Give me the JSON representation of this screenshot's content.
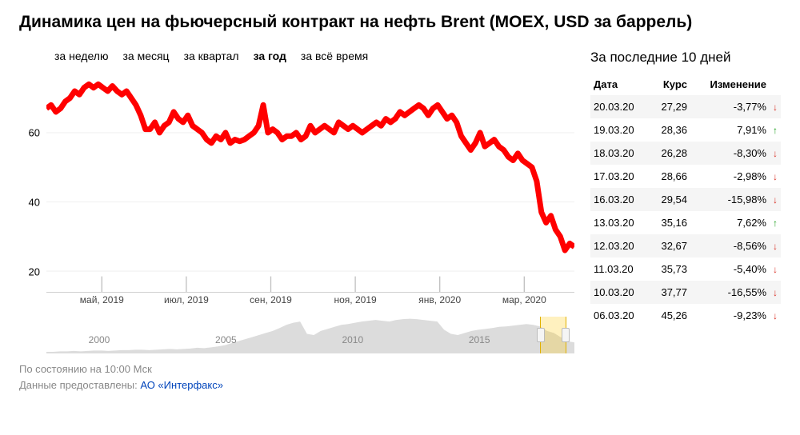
{
  "title": "Динамика цен на фьючерсный контракт на нефть Brent (MOEX, USD за баррель)",
  "tabs": [
    {
      "label": "за неделю",
      "active": false
    },
    {
      "label": "за месяц",
      "active": false
    },
    {
      "label": "за квартал",
      "active": false
    },
    {
      "label": "за год",
      "active": true
    },
    {
      "label": "за всё время",
      "active": false
    }
  ],
  "chart": {
    "type": "line",
    "line_color": "#ff0000",
    "line_width": 2,
    "background_color": "#ffffff",
    "grid_color": "#eeeeee",
    "ylim": [
      14,
      78
    ],
    "yticks": [
      20,
      40,
      60
    ],
    "xticks": [
      {
        "pos": 0.105,
        "label": "май, 2019"
      },
      {
        "pos": 0.265,
        "label": "июл, 2019"
      },
      {
        "pos": 0.425,
        "label": "сен, 2019"
      },
      {
        "pos": 0.585,
        "label": "ноя, 2019"
      },
      {
        "pos": 0.745,
        "label": "янв, 2020"
      },
      {
        "pos": 0.905,
        "label": "мар, 2020"
      }
    ],
    "series": [
      67,
      68,
      66,
      67,
      69,
      70,
      72,
      71,
      73,
      74,
      73,
      74,
      73,
      72,
      73.5,
      72,
      71,
      72,
      70,
      68,
      65,
      61,
      61,
      63,
      60,
      62,
      63,
      66,
      64,
      63,
      65,
      62,
      61,
      60,
      58,
      57,
      59,
      58,
      60,
      57,
      58,
      57.5,
      58,
      59,
      60,
      62,
      68,
      60,
      61,
      60,
      58,
      59,
      59,
      60,
      58,
      59,
      62,
      60,
      61,
      62,
      61,
      60,
      63,
      62,
      61,
      62,
      61,
      60,
      61,
      62,
      63,
      62,
      64,
      63,
      64,
      66,
      65,
      66,
      67,
      68,
      67,
      65,
      67,
      68,
      66,
      64,
      65,
      63,
      59,
      57,
      55,
      57,
      60,
      56,
      57,
      58,
      56,
      55,
      53,
      52,
      54,
      52,
      51,
      50,
      46,
      37,
      34,
      36,
      32,
      30,
      26,
      28,
      27
    ]
  },
  "overview": {
    "fill_color": "#dcdcdc",
    "window": {
      "start": 0.935,
      "end": 0.985
    },
    "ticks": [
      {
        "pos": 0.1,
        "label": "2000"
      },
      {
        "pos": 0.34,
        "label": "2005"
      },
      {
        "pos": 0.58,
        "label": "2010"
      },
      {
        "pos": 0.82,
        "label": "2015"
      }
    ],
    "series": [
      4,
      4,
      5,
      5,
      6,
      5,
      6,
      7,
      7,
      6,
      7,
      8,
      8,
      9,
      9,
      8,
      9,
      10,
      11,
      10,
      11,
      12,
      14,
      13,
      15,
      17,
      20,
      25,
      30,
      35,
      40,
      45,
      50,
      55,
      62,
      70,
      75,
      78,
      48,
      45,
      55,
      60,
      65,
      70,
      72,
      75,
      78,
      80,
      82,
      80,
      78,
      82,
      84,
      85,
      84,
      82,
      80,
      78,
      58,
      48,
      45,
      50,
      55,
      58,
      60,
      62,
      65,
      66,
      68,
      70,
      72,
      70,
      66,
      55,
      50,
      40,
      30,
      27
    ],
    "ylim": [
      0,
      90
    ]
  },
  "footer": {
    "asof": "По состоянию на 10:00 Мск",
    "provided": "Данные предоставлены: ",
    "provider": "АО «Интерфакс»"
  },
  "side": {
    "title": "За последние 10 дней",
    "headers": {
      "date": "Дата",
      "rate": "Курс",
      "change": "Изменение"
    },
    "rows": [
      {
        "date": "20.03.20",
        "rate": "27,29",
        "change": "-3,77%",
        "dir": "down"
      },
      {
        "date": "19.03.20",
        "rate": "28,36",
        "change": "7,91%",
        "dir": "up"
      },
      {
        "date": "18.03.20",
        "rate": "26,28",
        "change": "-8,30%",
        "dir": "down"
      },
      {
        "date": "17.03.20",
        "rate": "28,66",
        "change": "-2,98%",
        "dir": "down"
      },
      {
        "date": "16.03.20",
        "rate": "29,54",
        "change": "-15,98%",
        "dir": "down"
      },
      {
        "date": "13.03.20",
        "rate": "35,16",
        "change": "7,62%",
        "dir": "up"
      },
      {
        "date": "12.03.20",
        "rate": "32,67",
        "change": "-8,56%",
        "dir": "down"
      },
      {
        "date": "11.03.20",
        "rate": "35,73",
        "change": "-5,40%",
        "dir": "down"
      },
      {
        "date": "10.03.20",
        "rate": "37,77",
        "change": "-16,55%",
        "dir": "down"
      },
      {
        "date": "06.03.20",
        "rate": "45,26",
        "change": "-9,23%",
        "dir": "down"
      }
    ]
  }
}
